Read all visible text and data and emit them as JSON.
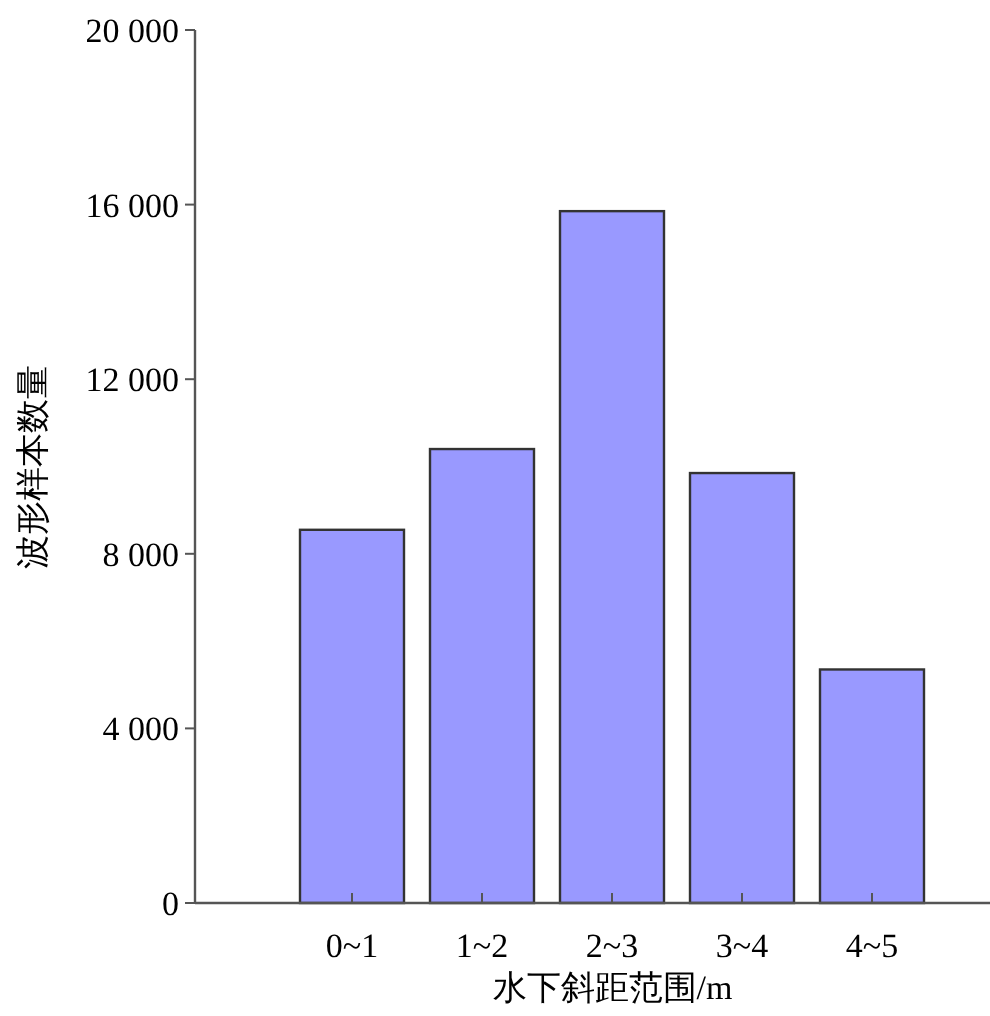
{
  "chart_data": {
    "type": "bar",
    "xlabel": "水下斜距范围/m",
    "ylabel": "波形样本数量",
    "categories": [
      "0~1",
      "1~2",
      "2~3",
      "3~4",
      "4~5"
    ],
    "values": [
      8550,
      10400,
      15850,
      9850,
      5350
    ],
    "color": "#9999ff",
    "ylim": [
      0,
      20000
    ],
    "yticks": [
      0,
      {
        "value": 4000,
        "label": "4 000"
      },
      {
        "value": 8000,
        "label": "8 000"
      },
      {
        "value": 12000,
        "label": "12 000"
      },
      {
        "value": 16000,
        "label": "16 000"
      },
      {
        "value": 20000,
        "label": "20 000"
      }
    ]
  }
}
